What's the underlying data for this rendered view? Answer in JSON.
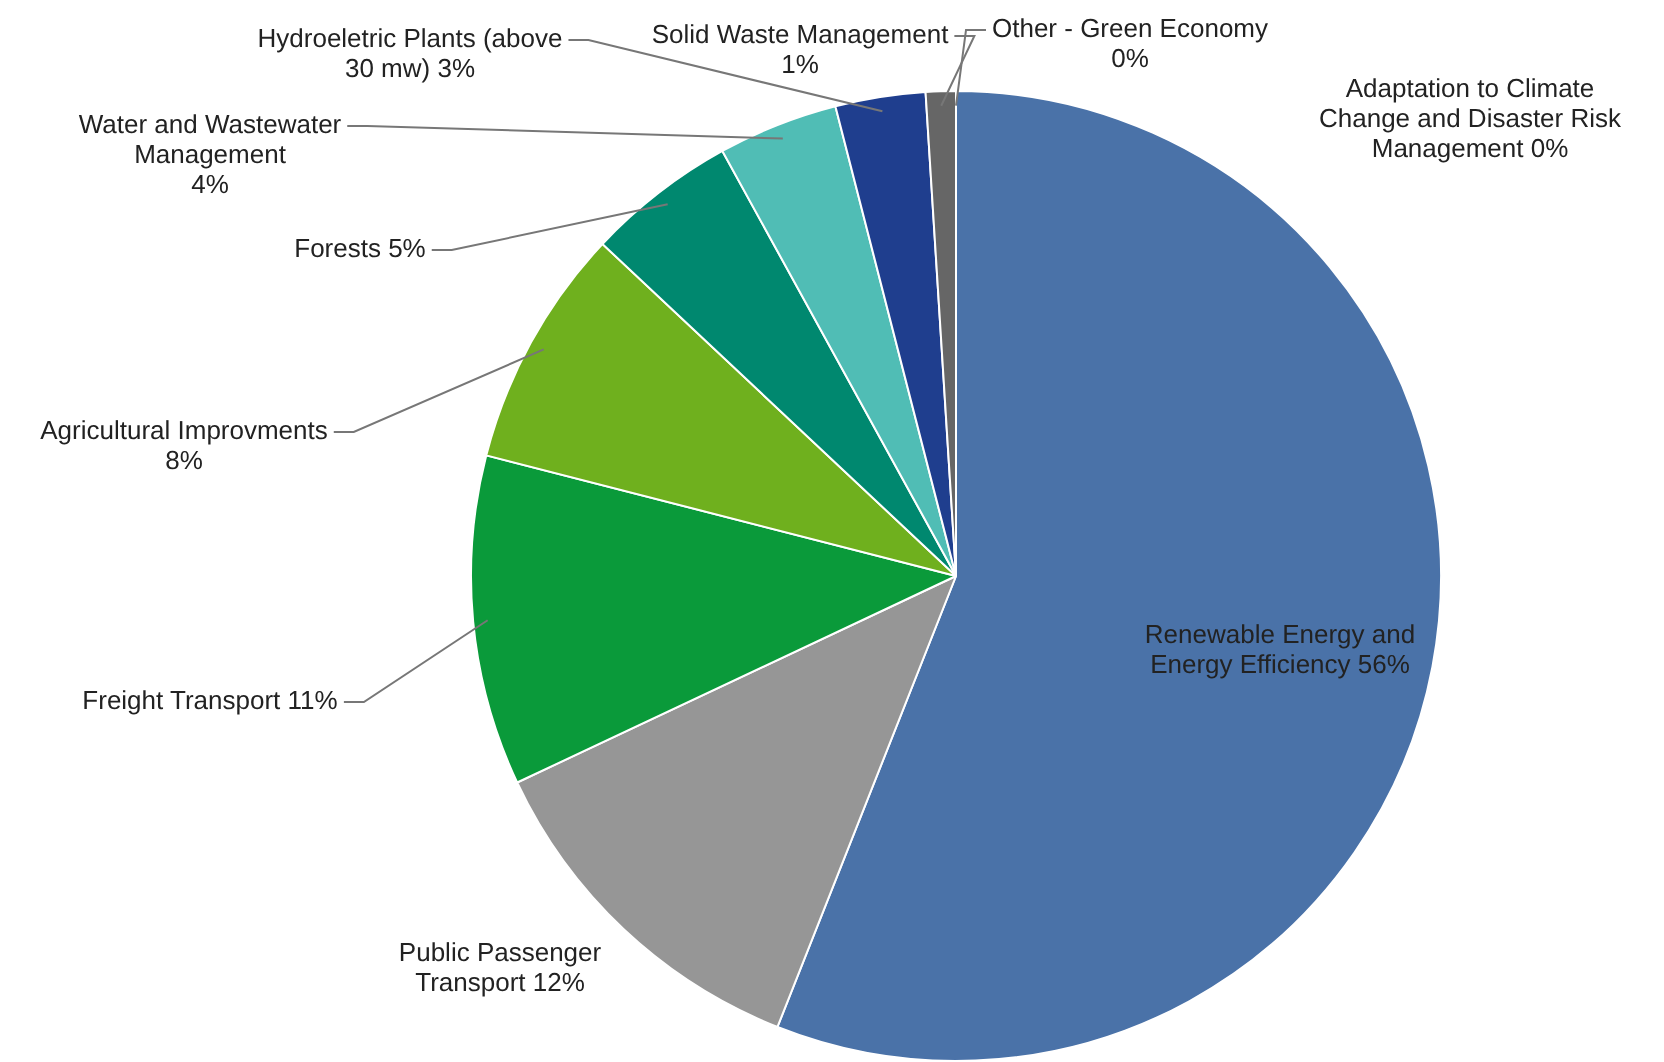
{
  "chart_data": {
    "type": "pie",
    "categories": [
      "Adaptation to Climate Change and Disaster Risk Management",
      "Renewable Energy and Energy Efficiency",
      "Public Passenger Transport",
      "Freight Transport",
      "Agricultural Improvments",
      "Forests",
      "Water and Wastewater Management",
      "Hydroeletric Plants (above 30 mw)",
      "Solid Waste Management",
      "Other - Green Economy"
    ],
    "values": [
      0,
      56,
      12,
      11,
      8,
      5,
      4,
      3,
      1,
      0
    ],
    "colors": [
      "#4a90d0",
      "#4a72a8",
      "#969696",
      "#0a9a3a",
      "#6fb01e",
      "#00886f",
      "#50bdb5",
      "#1f3e8e",
      "#666666",
      "#3fa8a0"
    ],
    "value_labels": [
      "0%",
      "56%",
      "12%",
      "11%",
      "8%",
      "5%",
      "4%",
      "3%",
      "1%",
      "0%"
    ],
    "legend": false
  }
}
